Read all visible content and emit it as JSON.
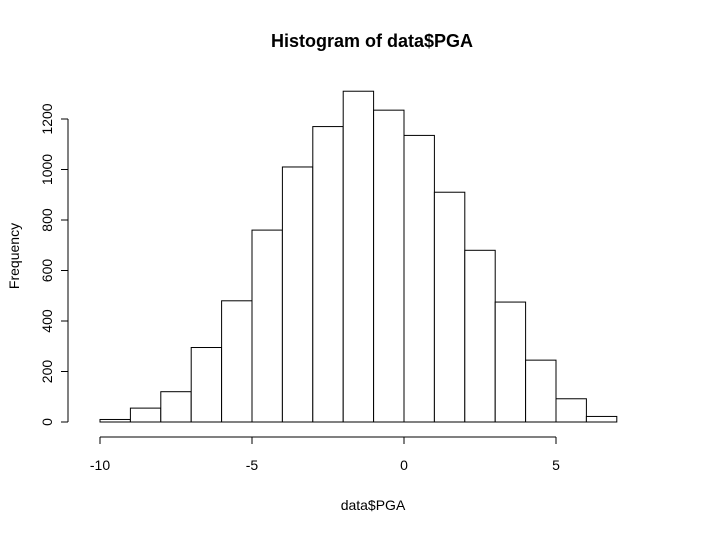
{
  "chart_data": {
    "type": "bar",
    "title": "Histogram of data$PGA",
    "xlabel": "data$PGA",
    "ylabel": "Frequency",
    "bins": [
      {
        "start": -10,
        "end": -9,
        "count": 10
      },
      {
        "start": -9,
        "end": -8,
        "count": 55
      },
      {
        "start": -8,
        "end": -7,
        "count": 120
      },
      {
        "start": -7,
        "end": -6,
        "count": 295
      },
      {
        "start": -6,
        "end": -5,
        "count": 480
      },
      {
        "start": -5,
        "end": -4,
        "count": 760
      },
      {
        "start": -4,
        "end": -3,
        "count": 1010
      },
      {
        "start": -3,
        "end": -2,
        "count": 1170
      },
      {
        "start": -2,
        "end": -1,
        "count": 1310
      },
      {
        "start": -1,
        "end": 0,
        "count": 1235
      },
      {
        "start": 0,
        "end": 1,
        "count": 1135
      },
      {
        "start": 1,
        "end": 2,
        "count": 910
      },
      {
        "start": 2,
        "end": 3,
        "count": 680
      },
      {
        "start": 3,
        "end": 4,
        "count": 475
      },
      {
        "start": 4,
        "end": 5,
        "count": 245
      },
      {
        "start": 5,
        "end": 6,
        "count": 92
      },
      {
        "start": 6,
        "end": 7,
        "count": 22
      }
    ],
    "xlim": [
      -10,
      8
    ],
    "ylim": [
      0,
      1310
    ],
    "x_ticks": [
      -10,
      -5,
      0,
      5
    ],
    "x_tick_labels": [
      "-10",
      "-5",
      "0",
      "5"
    ],
    "y_ticks": [
      0,
      200,
      400,
      600,
      800,
      1000,
      1200
    ],
    "y_tick_labels": [
      "0",
      "200",
      "400",
      "600",
      "800",
      "1000",
      "1200"
    ],
    "grid": false,
    "legend": "none",
    "bar_fill": "#ffffff",
    "bar_stroke": "#000000"
  }
}
